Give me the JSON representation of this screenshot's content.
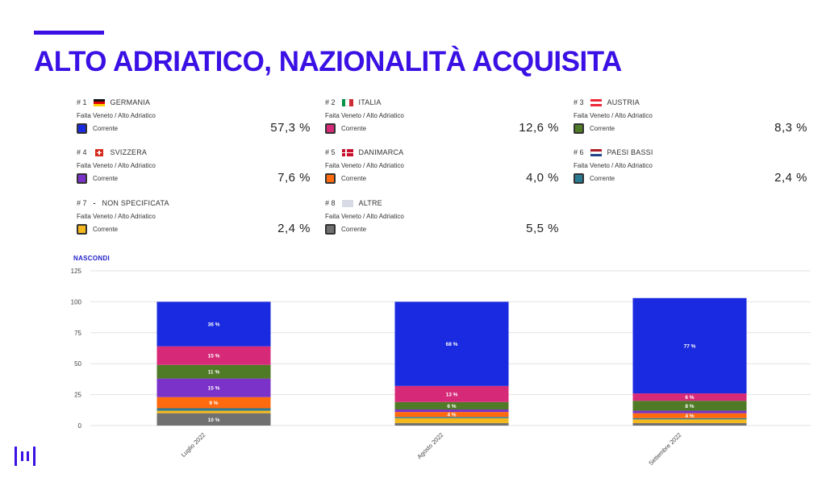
{
  "title": "ALTO ADRIATICO, NAZIONALITÀ ACQUISITA",
  "hide_label": "NASCONDI",
  "colors": {
    "accent": "#3a10e5",
    "GERMANIA": "#1a2ae0",
    "ITALIA": "#d62a78",
    "AUSTRIA": "#4f7a26",
    "SVIZZERA": "#7a32c8",
    "DANIMARCA": "#ff6a0e",
    "PAESI BASSI": "#2a7a94",
    "NON SPECIFICATA": "#f5b81c",
    "ALTRE": "#707070"
  },
  "cards": [
    {
      "rank": "# 1",
      "country": "GERMANIA",
      "flag": "germany-flag-icon",
      "source": "Faita Veneto / Alto Adriatico",
      "legend": "Corrente",
      "value": "57,3 %"
    },
    {
      "rank": "# 2",
      "country": "ITALIA",
      "flag": "italy-flag-icon",
      "source": "Faita Veneto / Alto Adriatico",
      "legend": "Corrente",
      "value": "12,6 %"
    },
    {
      "rank": "# 3",
      "country": "AUSTRIA",
      "flag": "austria-flag-icon",
      "source": "Faita Veneto / Alto Adriatico",
      "legend": "Corrente",
      "value": "8,3 %"
    },
    {
      "rank": "# 4",
      "country": "SVIZZERA",
      "flag": "switzerland-flag-icon",
      "source": "Faita Veneto / Alto Adriatico",
      "legend": "Corrente",
      "value": "7,6 %"
    },
    {
      "rank": "# 5",
      "country": "DANIMARCA",
      "flag": "denmark-flag-icon",
      "source": "Faita Veneto / Alto Adriatico",
      "legend": "Corrente",
      "value": "4,0 %"
    },
    {
      "rank": "# 6",
      "country": "PAESI BASSI",
      "flag": "netherlands-flag-icon",
      "source": "Faita Veneto / Alto Adriatico",
      "legend": "Corrente",
      "value": "2,4 %"
    },
    {
      "rank": "# 7",
      "country": "NON SPECIFICATA",
      "flag": "dash",
      "source": "Faita Veneto / Alto Adriatico",
      "legend": "Corrente",
      "value": "2,4 %"
    },
    {
      "rank": "# 8",
      "country": "ALTRE",
      "flag": "other-flag-icon",
      "source": "Faita Veneto / Alto Adriatico",
      "legend": "Corrente",
      "value": "5,5 %"
    }
  ],
  "chart_data": {
    "type": "bar",
    "stacked": true,
    "categories": [
      "Luglio 2022",
      "Agosto 2022",
      "Settembre 2022"
    ],
    "ylim": [
      0,
      125
    ],
    "yticks": [
      0,
      25,
      50,
      75,
      100,
      125
    ],
    "grid": true,
    "series": [
      {
        "name": "ALTRE",
        "values": [
          10,
          2,
          2
        ],
        "labels": [
          "10 %",
          "",
          ""
        ]
      },
      {
        "name": "NON SPECIFICATA",
        "values": [
          2,
          4,
          3
        ],
        "labels": [
          "",
          "",
          ""
        ]
      },
      {
        "name": "PAESI BASSI",
        "values": [
          2,
          1,
          1
        ],
        "labels": [
          "",
          "",
          ""
        ]
      },
      {
        "name": "DANIMARCA",
        "values": [
          9,
          4,
          4
        ],
        "labels": [
          "9 %",
          "4 %",
          "4 %"
        ]
      },
      {
        "name": "SVIZZERA",
        "values": [
          15,
          2,
          2
        ],
        "labels": [
          "15 %",
          "",
          ""
        ]
      },
      {
        "name": "AUSTRIA",
        "values": [
          11,
          6,
          8
        ],
        "labels": [
          "11 %",
          "6 %",
          "8 %"
        ]
      },
      {
        "name": "ITALIA",
        "values": [
          15,
          13,
          6
        ],
        "labels": [
          "15 %",
          "13 %",
          "6 %"
        ]
      },
      {
        "name": "GERMANIA",
        "values": [
          36,
          68,
          77
        ],
        "labels": [
          "36 %",
          "68 %",
          "77 %"
        ]
      }
    ]
  }
}
